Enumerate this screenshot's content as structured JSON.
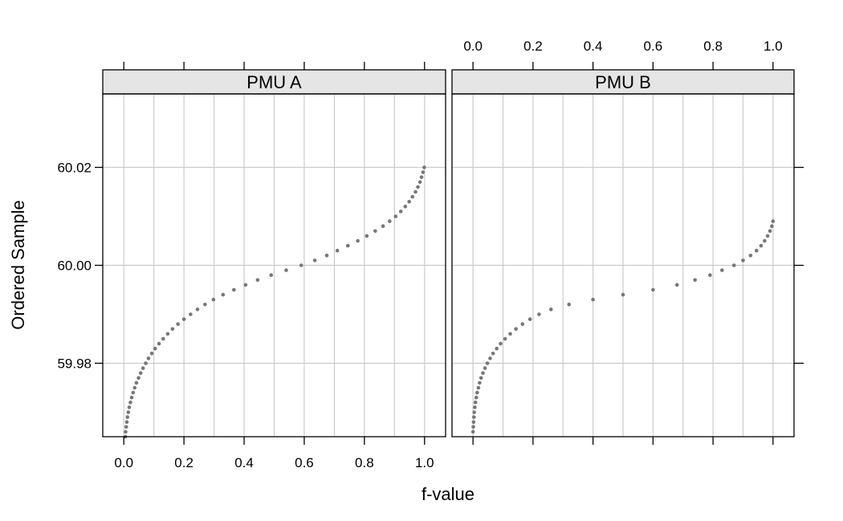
{
  "chart_data": {
    "type": "scatter",
    "title": "",
    "xlabel": "f-value",
    "ylabel": "Ordered Sample",
    "xlim": [
      -0.07,
      1.07
    ],
    "ylim": [
      59.965,
      60.035
    ],
    "x_ticks": [
      0.0,
      0.2,
      0.4,
      0.6,
      0.8,
      1.0
    ],
    "x_tick_labels": [
      "0.0",
      "0.2",
      "0.4",
      "0.6",
      "0.8",
      "1.0"
    ],
    "y_ticks": [
      59.98,
      60.0,
      60.02
    ],
    "y_tick_labels": [
      "59.98",
      "60.00",
      "60.02"
    ],
    "x_grid": [
      0.0,
      0.1,
      0.2,
      0.3,
      0.4,
      0.5,
      0.6,
      0.7,
      0.8,
      0.9,
      1.0
    ],
    "grid": true,
    "point_color": "#777777",
    "grid_color": "#cccccc",
    "strip_color": "#e5e5e5",
    "panels": [
      {
        "name": "PMU A",
        "points": [
          [
            0.005,
            59.965
          ],
          [
            0.006,
            59.966
          ],
          [
            0.008,
            59.967
          ],
          [
            0.01,
            59.968
          ],
          [
            0.012,
            59.969
          ],
          [
            0.015,
            59.97
          ],
          [
            0.018,
            59.971
          ],
          [
            0.022,
            59.972
          ],
          [
            0.026,
            59.973
          ],
          [
            0.031,
            59.974
          ],
          [
            0.036,
            59.975
          ],
          [
            0.042,
            59.976
          ],
          [
            0.049,
            59.977
          ],
          [
            0.056,
            59.978
          ],
          [
            0.064,
            59.979
          ],
          [
            0.073,
            59.98
          ],
          [
            0.082,
            59.981
          ],
          [
            0.093,
            59.982
          ],
          [
            0.104,
            59.983
          ],
          [
            0.117,
            59.984
          ],
          [
            0.131,
            59.985
          ],
          [
            0.146,
            59.986
          ],
          [
            0.162,
            59.987
          ],
          [
            0.18,
            59.988
          ],
          [
            0.2,
            59.989
          ],
          [
            0.222,
            59.99
          ],
          [
            0.245,
            59.991
          ],
          [
            0.27,
            59.992
          ],
          [
            0.298,
            59.993
          ],
          [
            0.33,
            59.994
          ],
          [
            0.366,
            59.995
          ],
          [
            0.405,
            59.996
          ],
          [
            0.445,
            59.997
          ],
          [
            0.49,
            59.998
          ],
          [
            0.54,
            59.999
          ],
          [
            0.59,
            60.0
          ],
          [
            0.635,
            60.001
          ],
          [
            0.675,
            60.002
          ],
          [
            0.71,
            60.003
          ],
          [
            0.745,
            60.004
          ],
          [
            0.778,
            60.005
          ],
          [
            0.808,
            60.006
          ],
          [
            0.836,
            60.007
          ],
          [
            0.862,
            60.008
          ],
          [
            0.884,
            60.009
          ],
          [
            0.904,
            60.01
          ],
          [
            0.921,
            60.011
          ],
          [
            0.936,
            60.012
          ],
          [
            0.949,
            60.013
          ],
          [
            0.96,
            60.014
          ],
          [
            0.97,
            60.015
          ],
          [
            0.978,
            60.016
          ],
          [
            0.985,
            60.017
          ],
          [
            0.99,
            60.018
          ],
          [
            0.995,
            60.019
          ],
          [
            0.999,
            60.02
          ]
        ]
      },
      {
        "name": "PMU B",
        "points": [
          [
            0.0,
            59.966
          ],
          [
            0.001,
            59.967
          ],
          [
            0.002,
            59.968
          ],
          [
            0.003,
            59.969
          ],
          [
            0.004,
            59.97
          ],
          [
            0.006,
            59.971
          ],
          [
            0.008,
            59.972
          ],
          [
            0.011,
            59.973
          ],
          [
            0.014,
            59.974
          ],
          [
            0.018,
            59.975
          ],
          [
            0.022,
            59.976
          ],
          [
            0.027,
            59.977
          ],
          [
            0.033,
            59.978
          ],
          [
            0.04,
            59.979
          ],
          [
            0.048,
            59.98
          ],
          [
            0.057,
            59.981
          ],
          [
            0.067,
            59.982
          ],
          [
            0.079,
            59.983
          ],
          [
            0.092,
            59.984
          ],
          [
            0.107,
            59.985
          ],
          [
            0.124,
            59.986
          ],
          [
            0.143,
            59.987
          ],
          [
            0.165,
            59.988
          ],
          [
            0.19,
            59.989
          ],
          [
            0.22,
            59.99
          ],
          [
            0.26,
            59.991
          ],
          [
            0.32,
            59.992
          ],
          [
            0.4,
            59.993
          ],
          [
            0.5,
            59.994
          ],
          [
            0.6,
            59.995
          ],
          [
            0.68,
            59.996
          ],
          [
            0.74,
            59.997
          ],
          [
            0.79,
            59.998
          ],
          [
            0.83,
            59.999
          ],
          [
            0.87,
            60.0
          ],
          [
            0.9,
            60.001
          ],
          [
            0.925,
            60.002
          ],
          [
            0.945,
            60.003
          ],
          [
            0.96,
            60.004
          ],
          [
            0.972,
            60.005
          ],
          [
            0.982,
            60.006
          ],
          [
            0.99,
            60.007
          ],
          [
            0.996,
            60.008
          ],
          [
            1.0,
            60.009
          ]
        ]
      }
    ]
  }
}
